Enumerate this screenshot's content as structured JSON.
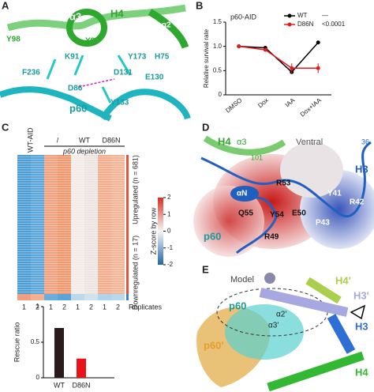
{
  "panels": {
    "A": {
      "letter": "A",
      "labels": [
        "α3",
        "H4",
        "α2",
        "Y98",
        "Y88",
        "K91",
        "Y173",
        "H75",
        "F236",
        "D131",
        "E130",
        "D86",
        "Y133",
        "p60"
      ]
    },
    "B": {
      "letter": "B"
    },
    "C": {
      "letter": "C"
    },
    "D": {
      "letter": "D",
      "labels": [
        "H4",
        "α3",
        "Ventral",
        "36",
        "101",
        "H3",
        "αN",
        "R53",
        "Y41",
        "Q55",
        "Y54",
        "E50",
        "P43",
        "R42",
        "R49",
        "p60"
      ]
    },
    "E": {
      "letter": "E",
      "labels": [
        "Model",
        "H4'",
        "H3'",
        "p60",
        "α2'",
        "α3'",
        "H3",
        "p60'",
        "H4"
      ]
    }
  },
  "chart_data": [
    {
      "type": "line",
      "title": "p60-AID",
      "y_label": "Relative survival rate",
      "categories": [
        "DMSO",
        "Dox",
        "IAA",
        "Dox+IAA"
      ],
      "series": [
        {
          "name": "WT",
          "color": "#000000",
          "p_value": "—",
          "values": [
            1.0,
            0.97,
            0.47,
            1.08
          ],
          "errors": [
            0,
            0.02,
            0.03,
            0.02
          ]
        },
        {
          "name": "D86N",
          "color": "#e41a1c",
          "p_value": "<0.0001",
          "values": [
            1.0,
            0.93,
            0.55,
            0.55
          ],
          "errors": [
            0,
            0.03,
            0.1,
            0.1
          ]
        }
      ],
      "ylim": [
        0,
        1.5
      ],
      "yticks": [
        0,
        0.5,
        {
          "value": 1,
          "label": "1.0"
        },
        1.5
      ]
    },
    {
      "type": "heatmap",
      "columns": [
        "WT-AID",
        "/",
        "WT",
        "D86N"
      ],
      "group_label": "p60 depletion",
      "colorbar_label": "Z-score by row",
      "clim": [
        -2,
        2
      ],
      "colorbar_ticks": [
        -2,
        -1,
        0,
        1,
        2
      ],
      "colors": [
        "#2166ac",
        "#f7f7f7",
        "#d6301f"
      ],
      "row_groups": [
        "Upregulated (n = 681)",
        "Downregulated (n = 17)"
      ],
      "replicates": [
        1,
        2,
        1,
        2,
        1,
        2,
        1,
        2
      ],
      "replicates_label": "Replicates"
    },
    {
      "type": "bar",
      "y_label": "Rescue ratio",
      "categories": [
        "WT",
        "D86N"
      ],
      "values": [
        0.7,
        0.27
      ],
      "colors": [
        "#2a1a1a",
        "#e8141a"
      ],
      "ylim": [
        0,
        1
      ],
      "yticks": [
        0,
        0.5,
        1
      ]
    }
  ]
}
